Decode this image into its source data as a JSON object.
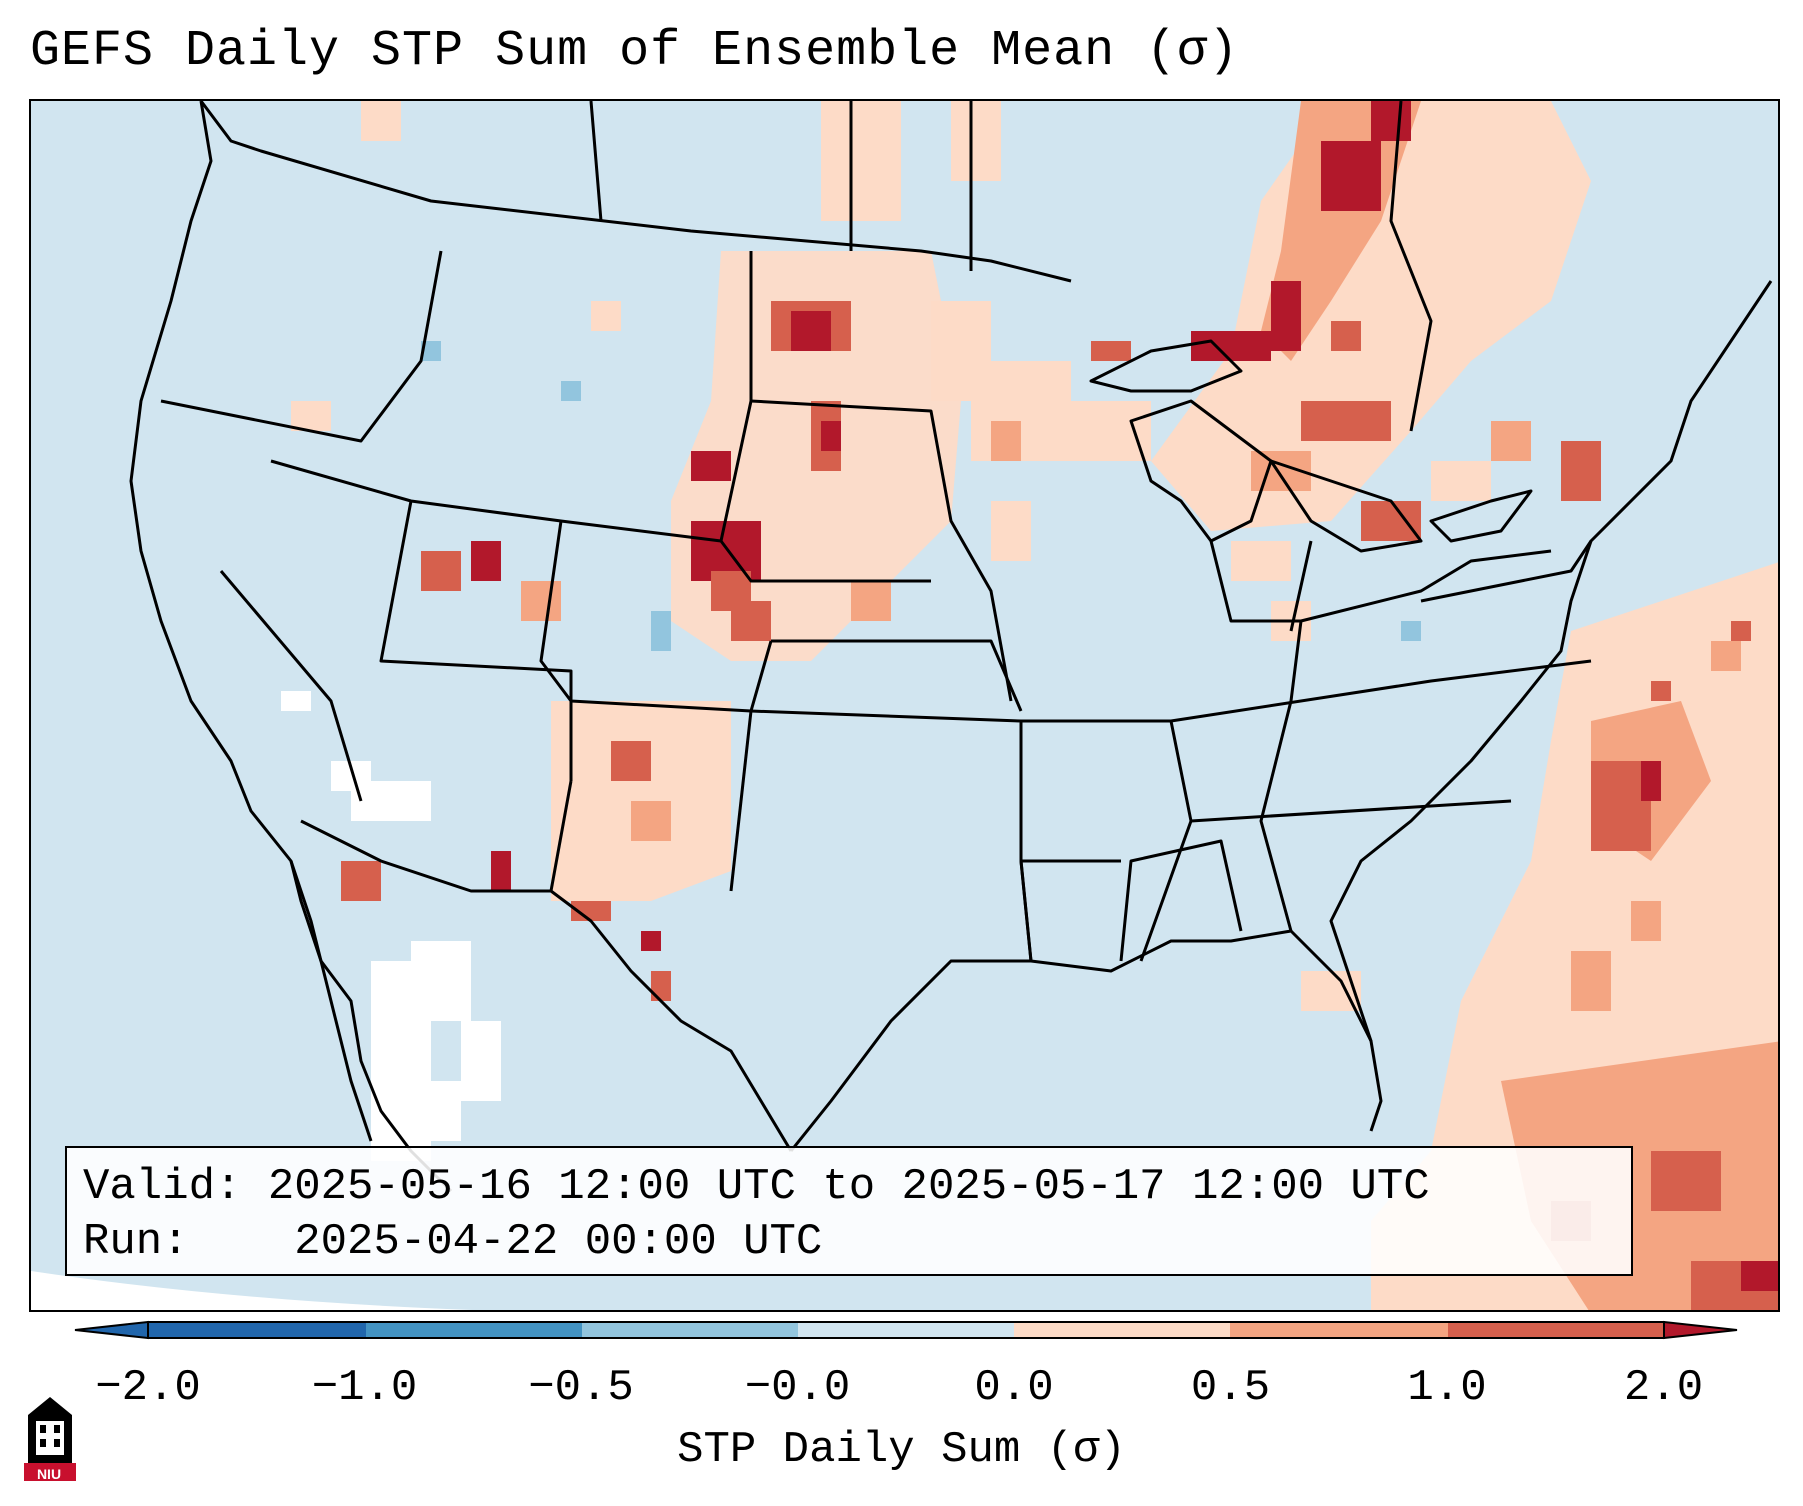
{
  "title": "GEFS Daily STP Sum of Ensemble Mean (σ)",
  "info": {
    "valid_label": "Valid:",
    "valid_value": "2025-05-16 12:00 UTC to 2025-05-17 12:00 UTC",
    "run_label": "Run:",
    "run_value": "2025-04-22 00:00 UTC"
  },
  "colorbar": {
    "label": "STP Daily Sum (σ)",
    "ticks": [
      "−2.0",
      "−1.0",
      "−0.5",
      "−0.0",
      "0.0",
      "0.5",
      "1.0",
      "2.0"
    ],
    "colors": [
      "#2166ac",
      "#4393c3",
      "#92c5de",
      "#d1e5f0",
      "#fddbc7",
      "#f4a582",
      "#d6604d",
      "#b2182b"
    ]
  },
  "map": {
    "background_color": "#d1e5f0",
    "region": "Contiguous United States",
    "high_value_regions": [
      "Northern Plains",
      "Colorado Front Range",
      "Great Lakes",
      "Western Atlantic"
    ]
  },
  "logo": {
    "text": "NIU",
    "icon": "university-tower-icon"
  }
}
